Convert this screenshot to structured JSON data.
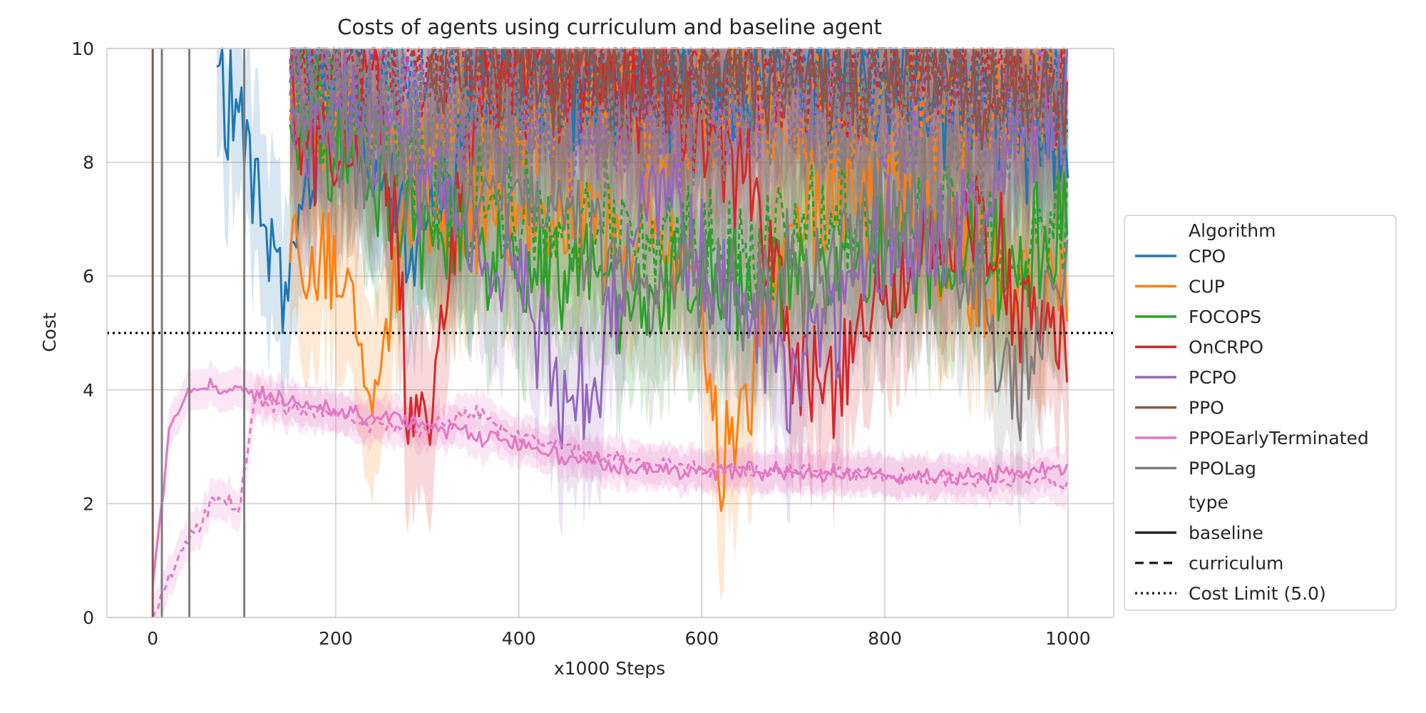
{
  "chart_data": {
    "type": "line",
    "title": "Costs of agents using curriculum and baseline agent",
    "xlabel": "x1000 Steps",
    "ylabel": "Cost",
    "xlim": [
      -50,
      1050
    ],
    "ylim": [
      0,
      10
    ],
    "x_ticks": [
      0,
      200,
      400,
      600,
      800,
      1000
    ],
    "x_tick_labels": [
      "0",
      "200",
      "400",
      "600",
      "800",
      "1000"
    ],
    "y_ticks": [
      0,
      2,
      4,
      6,
      8,
      10
    ],
    "y_tick_labels": [
      "0",
      "2",
      "4",
      "6",
      "8",
      "10"
    ],
    "grid": true,
    "legend_placement": "outside-right",
    "legend": {
      "algorithm_title": "Algorithm",
      "type_title": "type",
      "types": [
        {
          "name": "baseline",
          "dash": "solid"
        },
        {
          "name": "curriculum",
          "dash": "dashed"
        },
        {
          "name": "Cost Limit (5.0)",
          "dash": "dotted"
        }
      ]
    },
    "cost_limit": 5.0,
    "series": [
      {
        "name": "CPO",
        "color": "#1f77b4",
        "baseline": {
          "x": [
            70,
            90,
            110,
            130,
            140,
            200,
            280,
            380,
            500,
            600,
            700,
            800,
            900,
            1000
          ],
          "y": [
            9.0,
            9.2,
            8.0,
            6.5,
            5.4,
            9.6,
            6.2,
            9.5,
            9.3,
            9.0,
            9.4,
            9.3,
            9.0,
            8.0
          ]
        },
        "curriculum": {
          "x": [
            150,
            300,
            500,
            700,
            900,
            1000
          ],
          "y": [
            10.0,
            9.6,
            9.5,
            9.7,
            9.4,
            9.0
          ]
        }
      },
      {
        "name": "CUP",
        "color": "#ff7f0e",
        "baseline": {
          "x": [
            150,
            200,
            240,
            280,
            330,
            400,
            500,
            600,
            620,
            700,
            800,
            900,
            1000
          ],
          "y": [
            6.0,
            6.5,
            3.5,
            7.5,
            6.8,
            7.2,
            7.0,
            5.5,
            2.5,
            6.8,
            7.5,
            6.0,
            5.6
          ]
        },
        "curriculum": {
          "x": [
            150,
            250,
            350,
            450,
            550,
            650,
            750,
            850,
            950,
            1000
          ],
          "y": [
            9.0,
            8.5,
            8.8,
            9.2,
            8.6,
            9.0,
            8.7,
            8.9,
            9.0,
            9.2
          ]
        }
      },
      {
        "name": "FOCOPS",
        "color": "#2ca02c",
        "baseline": {
          "x": [
            150,
            250,
            350,
            450,
            550,
            650,
            750,
            850,
            950,
            1000
          ],
          "y": [
            9.0,
            7.5,
            6.5,
            6.2,
            5.8,
            6.0,
            6.3,
            6.5,
            6.0,
            7.3
          ]
        },
        "curriculum": {
          "x": [
            150,
            250,
            350,
            450,
            550,
            650,
            750,
            850,
            950,
            1000
          ],
          "y": [
            9.5,
            8.5,
            7.2,
            6.8,
            7.0,
            6.5,
            7.0,
            7.2,
            6.5,
            6.8
          ]
        }
      },
      {
        "name": "OnCRPO",
        "color": "#d62728",
        "baseline": {
          "x": [
            150,
            200,
            250,
            280,
            300,
            350,
            400,
            500,
            600,
            650,
            700,
            750,
            800,
            900,
            1000
          ],
          "y": [
            9.0,
            8.0,
            9.5,
            3.5,
            3.6,
            9.0,
            9.8,
            9.6,
            8.5,
            7.8,
            4.5,
            4.0,
            6.0,
            7.0,
            4.4
          ]
        },
        "curriculum": {
          "x": [
            150,
            300,
            500,
            700,
            900,
            1000
          ],
          "y": [
            9.8,
            9.5,
            9.6,
            9.3,
            9.5,
            9.6
          ]
        }
      },
      {
        "name": "PCPO",
        "color": "#9467bd",
        "baseline": {
          "x": [
            150,
            250,
            350,
            400,
            450,
            470,
            550,
            650,
            700,
            800,
            900,
            1000
          ],
          "y": [
            9.0,
            8.5,
            6.5,
            6.0,
            4.0,
            3.8,
            7.5,
            5.2,
            4.2,
            6.5,
            7.0,
            9.5
          ]
        },
        "curriculum": {
          "x": [
            150,
            300,
            500,
            700,
            900,
            1000
          ],
          "y": [
            9.5,
            9.0,
            8.5,
            8.8,
            9.0,
            9.2
          ]
        }
      },
      {
        "name": "PPO",
        "color": "#8c564b",
        "baseline": {
          "x": [
            300,
            400,
            500,
            600,
            700,
            800,
            900,
            1000
          ],
          "y": [
            9.8,
            9.6,
            9.5,
            9.7,
            9.4,
            9.5,
            9.3,
            9.2
          ]
        },
        "curriculum": {
          "x": [
            300,
            500,
            700,
            900,
            1000
          ],
          "y": [
            9.9,
            9.8,
            9.7,
            9.6,
            9.5
          ]
        }
      },
      {
        "name": "PPOEarlyTerminated",
        "color": "#e377c2",
        "baseline": {
          "x": [
            0,
            20,
            40,
            60,
            100,
            150,
            200,
            250,
            300,
            350,
            400,
            450,
            500,
            550,
            600,
            700,
            800,
            900,
            1000
          ],
          "y": [
            0.5,
            3.5,
            4.0,
            4.05,
            4.0,
            3.8,
            3.6,
            3.5,
            3.4,
            3.2,
            3.0,
            2.8,
            2.7,
            2.6,
            2.6,
            2.55,
            2.5,
            2.5,
            2.6
          ]
        },
        "curriculum": {
          "x": [
            0,
            10,
            20,
            40,
            70,
            95,
            110,
            150,
            200,
            250,
            300,
            350,
            400,
            450,
            500,
            600,
            700,
            800,
            900,
            1000
          ],
          "y": [
            0.0,
            0.3,
            0.8,
            1.4,
            2.1,
            1.9,
            3.8,
            3.7,
            3.5,
            3.4,
            3.3,
            3.6,
            3.2,
            3.0,
            2.8,
            2.6,
            2.6,
            2.5,
            2.4,
            2.4
          ]
        }
      },
      {
        "name": "PPOLag",
        "color": "#7f7f7f",
        "baseline": {
          "x": [
            150,
            250,
            350,
            450,
            550,
            650,
            750,
            850,
            950,
            1000
          ],
          "y": [
            9.0,
            8.0,
            7.5,
            7.0,
            6.0,
            5.5,
            6.5,
            7.5,
            4.0,
            6.5
          ]
        },
        "curriculum": {
          "x": [
            150,
            300,
            500,
            700,
            900,
            1000
          ],
          "y": [
            9.5,
            9.0,
            8.5,
            8.8,
            8.3,
            8.5
          ]
        }
      }
    ]
  }
}
